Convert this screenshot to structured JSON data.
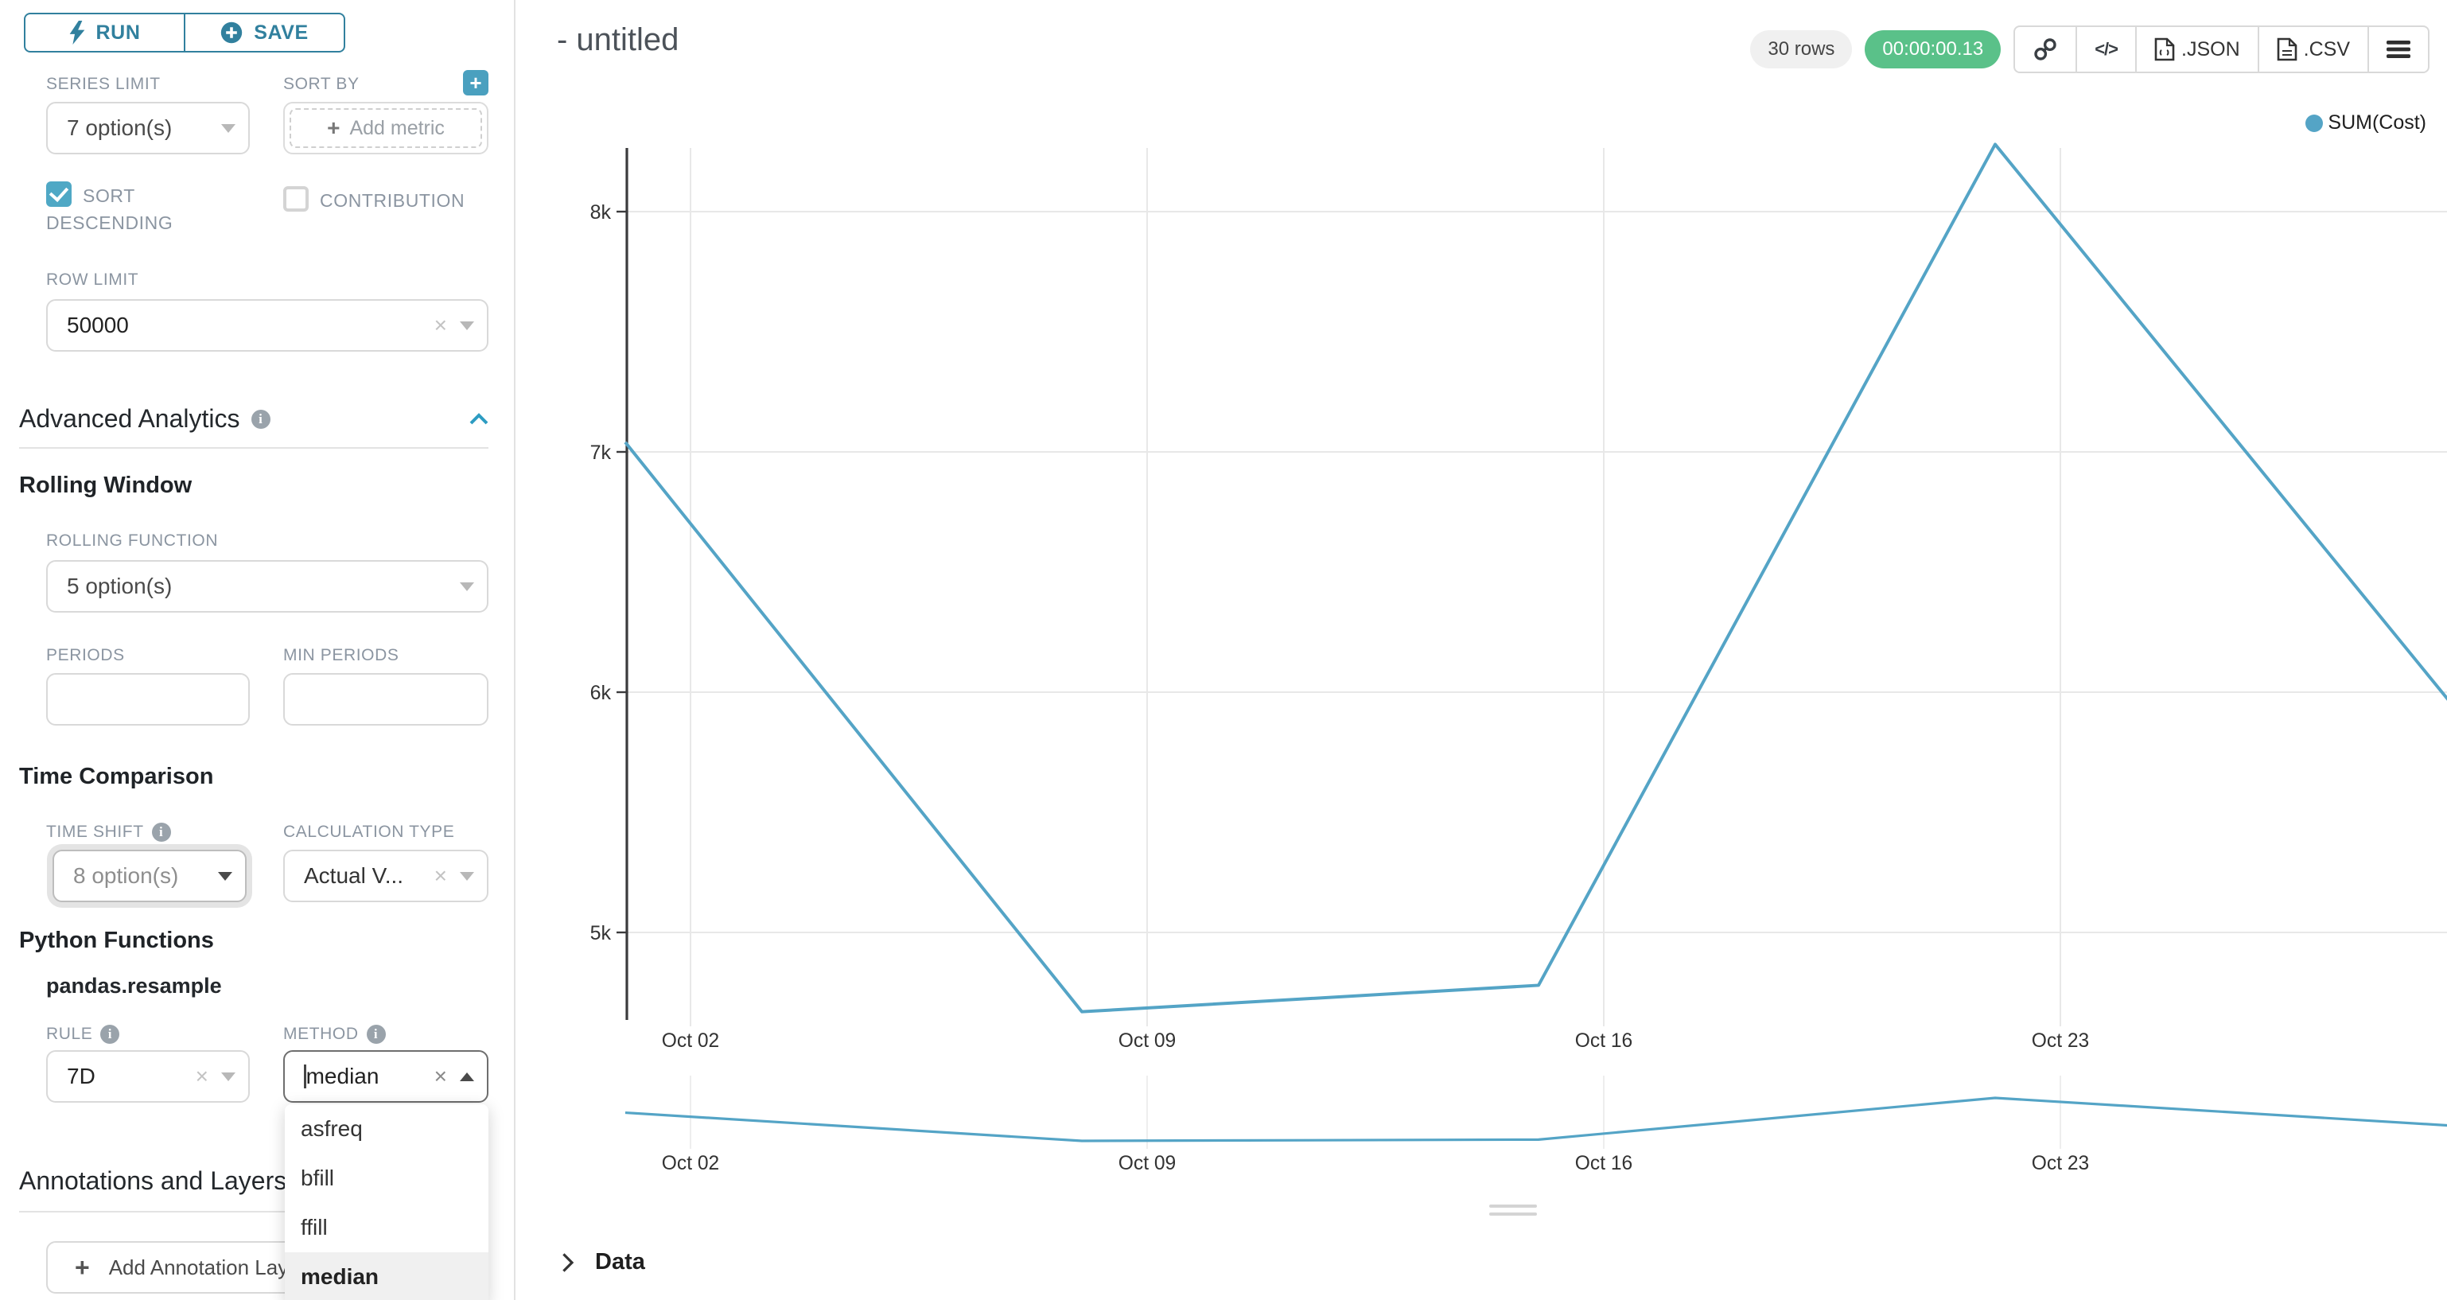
{
  "colors": {
    "primary_teal": "#31809e",
    "checkbox_teal": "#4fa8c5",
    "chevron_blue": "#2d9cc2",
    "line_blue": "#54a4c6",
    "timer_green": "#5ac189",
    "label_gray": "#8b95a1"
  },
  "sidebar": {
    "run_label": "RUN",
    "save_label": "SAVE",
    "series_limit": {
      "label": "SERIES LIMIT",
      "value": "7 option(s)"
    },
    "sort_by": {
      "label": "SORT BY",
      "placeholder": "Add metric",
      "add_button": "+"
    },
    "sort_descending": {
      "label": "SORT DESCENDING",
      "checked": true
    },
    "contribution": {
      "label": "CONTRIBUTION",
      "checked": false
    },
    "row_limit": {
      "label": "ROW LIMIT",
      "value": "50000"
    },
    "advanced_analytics": {
      "title": "Advanced Analytics"
    },
    "rolling_window": {
      "title": "Rolling Window"
    },
    "rolling_function": {
      "label": "ROLLING FUNCTION",
      "value": "5 option(s)"
    },
    "periods": {
      "label": "PERIODS",
      "value": ""
    },
    "min_periods": {
      "label": "MIN PERIODS",
      "value": ""
    },
    "time_comparison": {
      "title": "Time Comparison"
    },
    "time_shift": {
      "label": "TIME SHIFT",
      "value": "8 option(s)"
    },
    "calculation_type": {
      "label": "CALCULATION TYPE",
      "value": "Actual V..."
    },
    "python_functions": {
      "title": "Python Functions"
    },
    "pandas_resample": {
      "title": "pandas.resample"
    },
    "rule": {
      "label": "RULE",
      "value": "7D"
    },
    "method": {
      "label": "METHOD",
      "value": "median"
    },
    "method_dropdown": {
      "options": [
        "asfreq",
        "bfill",
        "ffill",
        "median"
      ],
      "selected": "median"
    },
    "annotations": {
      "title": "Annotations and Layers"
    },
    "add_annotation_label": "Add Annotation Layer"
  },
  "header": {
    "title": "- untitled",
    "rows_badge": "30 rows",
    "timer": "00:00:00.13",
    "json_button": ".JSON",
    "csv_button": ".CSV"
  },
  "data_panel": {
    "label": "Data"
  },
  "chart_data": {
    "type": "line",
    "title": "",
    "legend": [
      "SUM(Cost)"
    ],
    "legend_position": "top-right",
    "grid": true,
    "x_tick_labels": [
      "Oct 02",
      "Oct 09",
      "Oct 16",
      "Oct 23"
    ],
    "y_tick_labels": [
      "5k",
      "6k",
      "7k",
      "8k"
    ],
    "y_tick_values": [
      5000,
      6000,
      7000,
      8000
    ],
    "ylim": [
      4640,
      8270
    ],
    "series": [
      {
        "name": "SUM(Cost)",
        "x": [
          "Oct 01",
          "Oct 08",
          "Oct 15",
          "Oct 22",
          "Oct 29"
        ],
        "values": [
          7040,
          4670,
          4780,
          8280,
          5950
        ]
      }
    ],
    "has_preview_strip": true
  }
}
